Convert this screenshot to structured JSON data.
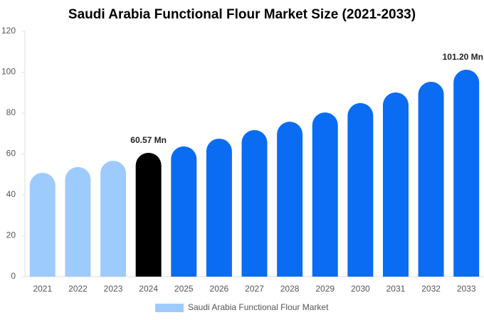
{
  "chart_data": {
    "type": "bar",
    "title": "Saudi Arabia Functional Flour Market Size (2021-2033)",
    "categories": [
      "2021",
      "2022",
      "2023",
      "2024",
      "2025",
      "2026",
      "2027",
      "2028",
      "2029",
      "2030",
      "2031",
      "2032",
      "2033"
    ],
    "series": [
      {
        "name": "Saudi Arabia Functional Flour Market",
        "color": "#9ecbfd",
        "colors": [
          "#9ecbfd",
          "#9ecbfd",
          "#9ecbfd",
          "#000000",
          "#0a6cf2",
          "#0a6cf2",
          "#0a6cf2",
          "#0a6cf2",
          "#0a6cf2",
          "#0a6cf2",
          "#0a6cf2",
          "#0a6cf2",
          "#0a6cf2"
        ],
        "values": [
          50.8,
          53.6,
          56.7,
          60.57,
          63.7,
          67.5,
          71.7,
          75.8,
          80.3,
          84.9,
          90.1,
          95.3,
          101.2
        ],
        "value_labels": [
          null,
          null,
          null,
          "60.57 Mn",
          null,
          null,
          null,
          null,
          null,
          null,
          null,
          null,
          "101.20 Mn"
        ]
      }
    ],
    "ylim": [
      0,
      120
    ],
    "yticks": [
      0,
      20,
      40,
      60,
      80,
      100,
      120
    ],
    "grid": false
  }
}
